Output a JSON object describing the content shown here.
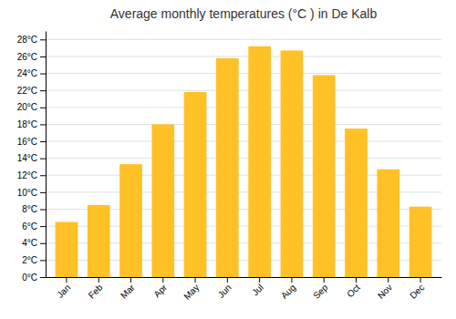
{
  "chart_data": {
    "type": "bar",
    "title": "Average monthly temperatures (°C ) in De Kalb",
    "categories": [
      "Jan",
      "Feb",
      "Mar",
      "Apr",
      "May",
      "Jun",
      "Jul",
      "Aug",
      "Sep",
      "Oct",
      "Nov",
      "Dec"
    ],
    "values": [
      6.5,
      8.5,
      13.3,
      18.0,
      21.8,
      25.8,
      27.2,
      26.7,
      23.8,
      17.5,
      12.7,
      8.3
    ],
    "color": "#FFC125",
    "ylim": [
      0,
      29
    ],
    "yticks": [
      {
        "value": 0,
        "label": "0°C"
      },
      {
        "value": 2,
        "label": "2°C"
      },
      {
        "value": 4,
        "label": "4°C"
      },
      {
        "value": 6,
        "label": "6°C"
      },
      {
        "value": 8,
        "label": "8°C"
      },
      {
        "value": 10,
        "label": "10°C"
      },
      {
        "value": 12,
        "label": "12°C"
      },
      {
        "value": 14,
        "label": "14°C"
      },
      {
        "value": 16,
        "label": "16°C"
      },
      {
        "value": 18,
        "label": "18°C"
      },
      {
        "value": 20,
        "label": "20°C"
      },
      {
        "value": 22,
        "label": "22°C"
      },
      {
        "value": 24,
        "label": "24°C"
      },
      {
        "value": 26,
        "label": "26°C"
      },
      {
        "value": 28,
        "label": "28°C"
      }
    ],
    "grid": true
  }
}
